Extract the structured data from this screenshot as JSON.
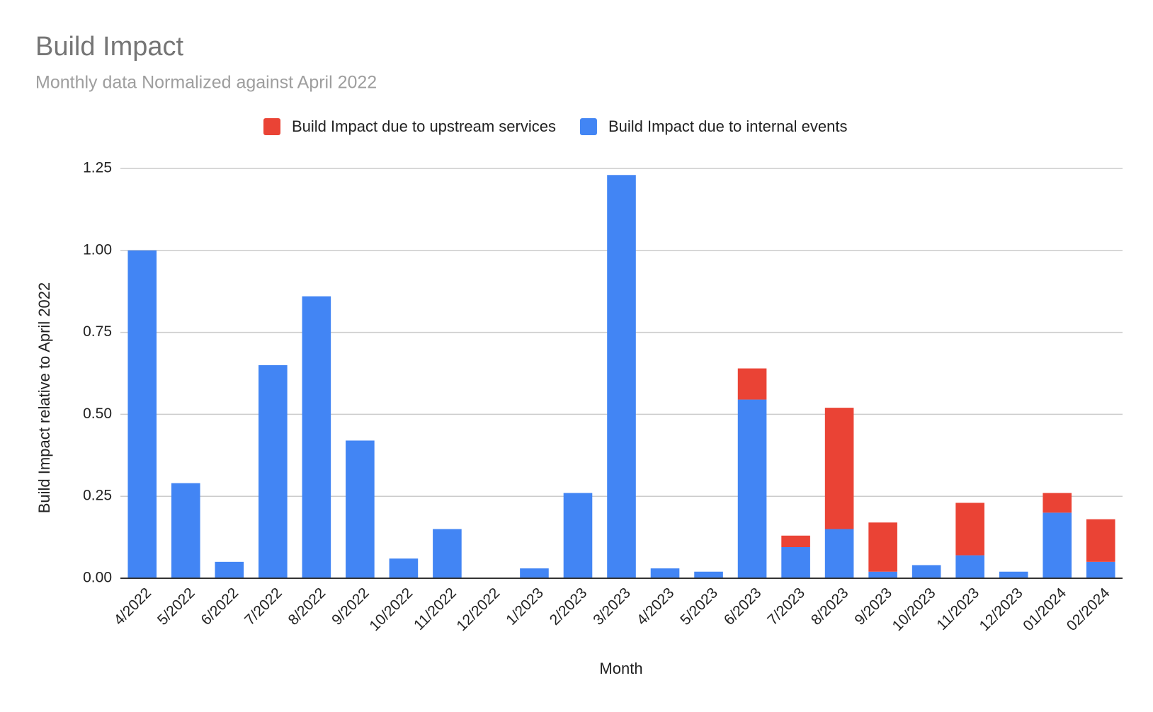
{
  "chart_data": {
    "type": "stacked_bar",
    "title": "Build Impact",
    "subtitle": "Monthly data Normalized against April 2022",
    "x_label": "Month",
    "y_label": "Build Impact relative to April 2022",
    "categories": [
      "4/2022",
      "5/2022",
      "6/2022",
      "7/2022",
      "8/2022",
      "9/2022",
      "10/2022",
      "11/2022",
      "12/2022",
      "1/2023",
      "2/2023",
      "3/2023",
      "4/2023",
      "5/2023",
      "6/2023",
      "7/2023",
      "8/2023",
      "9/2023",
      "10/2023",
      "11/2023",
      "12/2023",
      "01/2024",
      "02/2024"
    ],
    "series": [
      {
        "name": "Build Impact due to upstream services",
        "color": "#ea4335",
        "values": [
          0,
          0,
          0,
          0,
          0,
          0,
          0,
          0,
          0,
          0,
          0,
          0,
          0,
          0,
          0.095,
          0.035,
          0.37,
          0.15,
          0,
          0.16,
          0,
          0.06,
          0.13
        ]
      },
      {
        "name": "Build Impact due to internal events",
        "color": "#4285f4",
        "values": [
          1.0,
          0.29,
          0.05,
          0.65,
          0.86,
          0.42,
          0.06,
          0.15,
          0,
          0.03,
          0.26,
          1.23,
          0.03,
          0.02,
          0.545,
          0.095,
          0.15,
          0.02,
          0.04,
          0.07,
          0.02,
          0.2,
          0.05
        ]
      }
    ],
    "ylim": [
      0,
      1.25
    ],
    "yticks": [
      {
        "value": 0,
        "label": "0.00"
      },
      0.25,
      {
        "value": 0.5,
        "label": "0.50"
      },
      0.75,
      {
        "value": 1,
        "label": "1.00"
      },
      1.25
    ],
    "grid": true,
    "legend": "top"
  }
}
